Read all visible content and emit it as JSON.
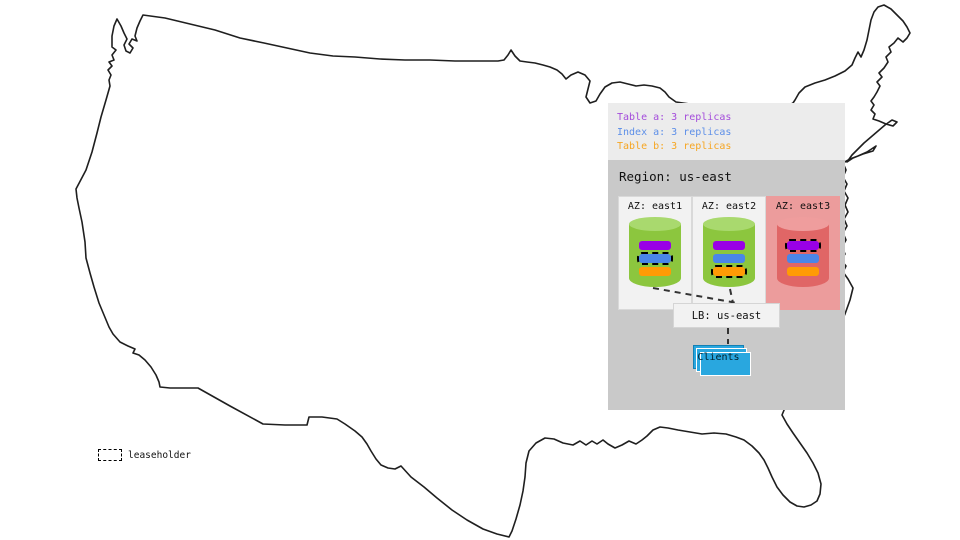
{
  "colors": {
    "table_a_replica": "#9900e6",
    "index_a_replica": "#4a86e8",
    "table_b_replica": "#ff9b05",
    "legend_table_a_text": "#a44ddb",
    "legend_index_a_text": "#5d8fe8",
    "legend_table_b_text": "#f6a623",
    "legend_panel_bg": "#ececec",
    "region_panel_bg": "#c9c9c9",
    "az_up_bg": "#f2f2f2",
    "az_down_bg": "#ec9c9c",
    "cylinder_up_body": "#8cc63e",
    "cylinder_up_top": "#a9d96e",
    "cylinder_down_body": "#e06666",
    "cylinder_down_top": "#ef9d9d",
    "lb_box_bg": "#f2f2f2",
    "clients_box_bg": "#29a7df",
    "map_outline": "#1f1f1f"
  },
  "legend": {
    "items": [
      {
        "label": "Table a: 3 replicas",
        "key": "table-a"
      },
      {
        "label": "Index a: 3 replicas",
        "key": "index-a"
      },
      {
        "label": "Table b: 3 replicas",
        "key": "table-b"
      }
    ]
  },
  "region": {
    "title": "Region: us-east",
    "azs": [
      {
        "label": "AZ: east1",
        "status": "up",
        "replicas": [
          {
            "name": "table-a",
            "leaseholder": false
          },
          {
            "name": "index-a",
            "leaseholder": true
          },
          {
            "name": "table-b",
            "leaseholder": false
          }
        ]
      },
      {
        "label": "AZ: east2",
        "status": "up",
        "replicas": [
          {
            "name": "table-a",
            "leaseholder": false
          },
          {
            "name": "index-a",
            "leaseholder": false
          },
          {
            "name": "table-b",
            "leaseholder": true
          }
        ]
      },
      {
        "label": "AZ: east3",
        "status": "down",
        "replicas": [
          {
            "name": "table-a",
            "leaseholder": true
          },
          {
            "name": "index-a",
            "leaseholder": false
          },
          {
            "name": "table-b",
            "leaseholder": false
          }
        ]
      }
    ]
  },
  "load_balancer": {
    "label": "LB: us-east"
  },
  "clients": {
    "label": "Clients"
  },
  "map_legend": {
    "label": "leaseholder"
  }
}
